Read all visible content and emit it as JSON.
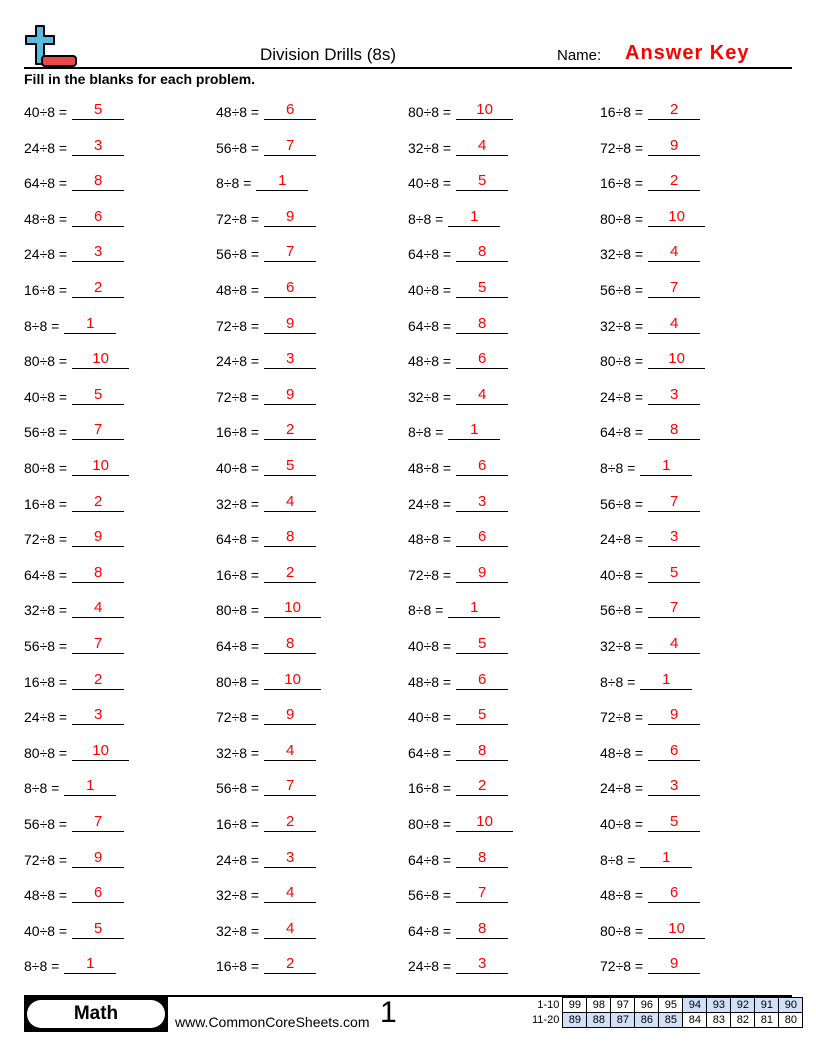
{
  "header": {
    "title": "Division Drills (8s)",
    "name_label": "Name:",
    "answer_key": "Answer Key",
    "logo_icon": "plus-minus-logo"
  },
  "instructions": "Fill in the blanks for each problem.",
  "colors": {
    "answer": "#ff0000",
    "highlight": "#cfe0f8"
  },
  "problems": [
    [
      [
        "40÷8 =",
        "5"
      ],
      [
        "48÷8 =",
        "6"
      ],
      [
        "80÷8 =",
        "10"
      ],
      [
        "16÷8 =",
        "2"
      ]
    ],
    [
      [
        "24÷8 =",
        "3"
      ],
      [
        "56÷8 =",
        "7"
      ],
      [
        "32÷8 =",
        "4"
      ],
      [
        "72÷8 =",
        "9"
      ]
    ],
    [
      [
        "64÷8 =",
        "8"
      ],
      [
        "8÷8 =",
        "1"
      ],
      [
        "40÷8 =",
        "5"
      ],
      [
        "16÷8 =",
        "2"
      ]
    ],
    [
      [
        "48÷8 =",
        "6"
      ],
      [
        "72÷8 =",
        "9"
      ],
      [
        "8÷8 =",
        "1"
      ],
      [
        "80÷8 =",
        "10"
      ]
    ],
    [
      [
        "24÷8 =",
        "3"
      ],
      [
        "56÷8 =",
        "7"
      ],
      [
        "64÷8 =",
        "8"
      ],
      [
        "32÷8 =",
        "4"
      ]
    ],
    [
      [
        "16÷8 =",
        "2"
      ],
      [
        "48÷8 =",
        "6"
      ],
      [
        "40÷8 =",
        "5"
      ],
      [
        "56÷8 =",
        "7"
      ]
    ],
    [
      [
        "8÷8 =",
        "1"
      ],
      [
        "72÷8 =",
        "9"
      ],
      [
        "64÷8 =",
        "8"
      ],
      [
        "32÷8 =",
        "4"
      ]
    ],
    [
      [
        "80÷8 =",
        "10"
      ],
      [
        "24÷8 =",
        "3"
      ],
      [
        "48÷8 =",
        "6"
      ],
      [
        "80÷8 =",
        "10"
      ]
    ],
    [
      [
        "40÷8 =",
        "5"
      ],
      [
        "72÷8 =",
        "9"
      ],
      [
        "32÷8 =",
        "4"
      ],
      [
        "24÷8 =",
        "3"
      ]
    ],
    [
      [
        "56÷8 =",
        "7"
      ],
      [
        "16÷8 =",
        "2"
      ],
      [
        "8÷8 =",
        "1"
      ],
      [
        "64÷8 =",
        "8"
      ]
    ],
    [
      [
        "80÷8 =",
        "10"
      ],
      [
        "40÷8 =",
        "5"
      ],
      [
        "48÷8 =",
        "6"
      ],
      [
        "8÷8 =",
        "1"
      ]
    ],
    [
      [
        "16÷8 =",
        "2"
      ],
      [
        "32÷8 =",
        "4"
      ],
      [
        "24÷8 =",
        "3"
      ],
      [
        "56÷8 =",
        "7"
      ]
    ],
    [
      [
        "72÷8 =",
        "9"
      ],
      [
        "64÷8 =",
        "8"
      ],
      [
        "48÷8 =",
        "6"
      ],
      [
        "24÷8 =",
        "3"
      ]
    ],
    [
      [
        "64÷8 =",
        "8"
      ],
      [
        "16÷8 =",
        "2"
      ],
      [
        "72÷8 =",
        "9"
      ],
      [
        "40÷8 =",
        "5"
      ]
    ],
    [
      [
        "32÷8 =",
        "4"
      ],
      [
        "80÷8 =",
        "10"
      ],
      [
        "8÷8 =",
        "1"
      ],
      [
        "56÷8 =",
        "7"
      ]
    ],
    [
      [
        "56÷8 =",
        "7"
      ],
      [
        "64÷8 =",
        "8"
      ],
      [
        "40÷8 =",
        "5"
      ],
      [
        "32÷8 =",
        "4"
      ]
    ],
    [
      [
        "16÷8 =",
        "2"
      ],
      [
        "80÷8 =",
        "10"
      ],
      [
        "48÷8 =",
        "6"
      ],
      [
        "8÷8 =",
        "1"
      ]
    ],
    [
      [
        "24÷8 =",
        "3"
      ],
      [
        "72÷8 =",
        "9"
      ],
      [
        "40÷8 =",
        "5"
      ],
      [
        "72÷8 =",
        "9"
      ]
    ],
    [
      [
        "80÷8 =",
        "10"
      ],
      [
        "32÷8 =",
        "4"
      ],
      [
        "64÷8 =",
        "8"
      ],
      [
        "48÷8 =",
        "6"
      ]
    ],
    [
      [
        "8÷8 =",
        "1"
      ],
      [
        "56÷8 =",
        "7"
      ],
      [
        "16÷8 =",
        "2"
      ],
      [
        "24÷8 =",
        "3"
      ]
    ],
    [
      [
        "56÷8 =",
        "7"
      ],
      [
        "16÷8 =",
        "2"
      ],
      [
        "80÷8 =",
        "10"
      ],
      [
        "40÷8 =",
        "5"
      ]
    ],
    [
      [
        "72÷8 =",
        "9"
      ],
      [
        "24÷8 =",
        "3"
      ],
      [
        "64÷8 =",
        "8"
      ],
      [
        "8÷8 =",
        "1"
      ]
    ],
    [
      [
        "48÷8 =",
        "6"
      ],
      [
        "32÷8 =",
        "4"
      ],
      [
        "56÷8 =",
        "7"
      ],
      [
        "48÷8 =",
        "6"
      ]
    ],
    [
      [
        "40÷8 =",
        "5"
      ],
      [
        "32÷8 =",
        "4"
      ],
      [
        "64÷8 =",
        "8"
      ],
      [
        "80÷8 =",
        "10"
      ]
    ],
    [
      [
        "8÷8 =",
        "1"
      ],
      [
        "16÷8 =",
        "2"
      ],
      [
        "24÷8 =",
        "3"
      ],
      [
        "72÷8 =",
        "9"
      ]
    ]
  ],
  "footer": {
    "subject": "Math",
    "url": "www.CommonCoreSheets.com",
    "page": "1",
    "score_rows": [
      {
        "label": "1-10",
        "scores": [
          "99",
          "98",
          "97",
          "96",
          "95",
          "94",
          "93",
          "92",
          "91",
          "90"
        ],
        "highlighted": [
          false,
          false,
          false,
          false,
          false,
          true,
          true,
          true,
          true,
          true
        ]
      },
      {
        "label": "11-20",
        "scores": [
          "89",
          "88",
          "87",
          "86",
          "85",
          "84",
          "83",
          "82",
          "81",
          "80"
        ],
        "highlighted": [
          true,
          true,
          true,
          true,
          true,
          false,
          false,
          false,
          false,
          false
        ]
      }
    ]
  }
}
